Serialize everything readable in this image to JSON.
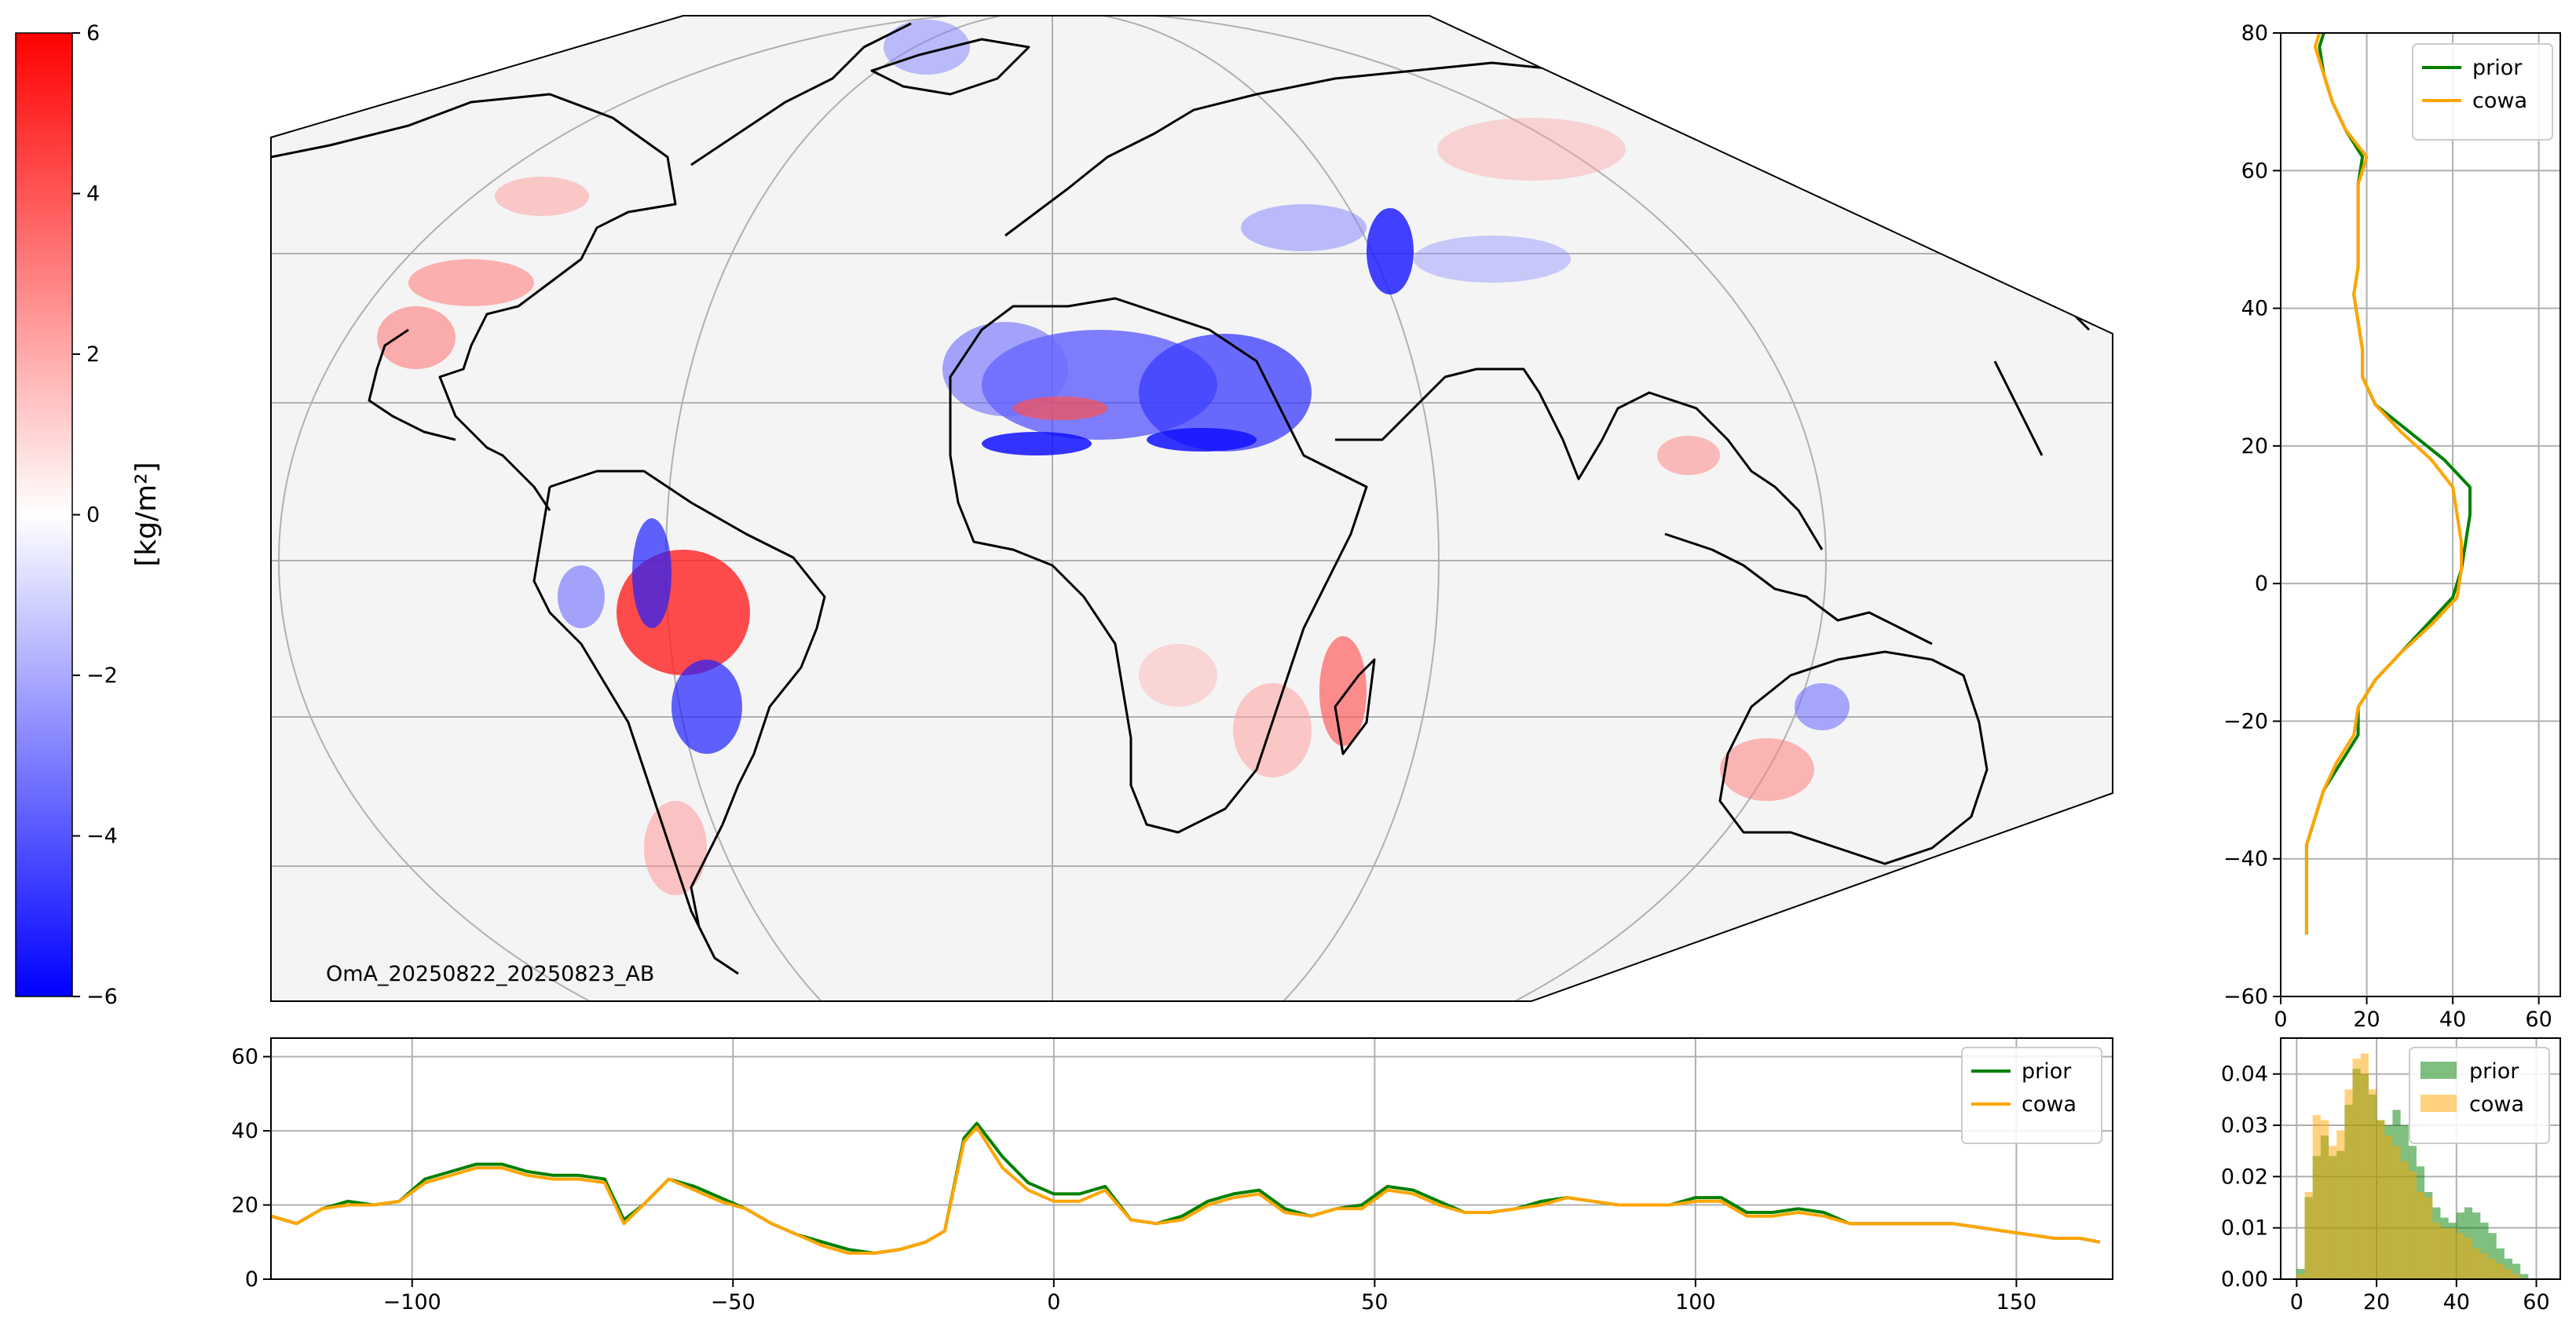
{
  "colorbar": {
    "label": "[kg/m²]",
    "range": [
      -6,
      6
    ],
    "ticks": [
      "6",
      "4",
      "2",
      "0",
      "−2",
      "−4",
      "−6"
    ],
    "colors": {
      "high": "#ff0000",
      "mid": "#ffffff",
      "low": "#0000ff"
    }
  },
  "map": {
    "caption": "OmA_20250822_20250823_AB",
    "projection": "Robinson",
    "background": "#f4f4f4",
    "coastline_color": "#000000",
    "gridline_color": "#b0b0b0"
  },
  "colors": {
    "prior": "#008000",
    "cowa": "#ffa500",
    "raw": "#8fc7e8"
  },
  "chart_data": [
    {
      "type": "line",
      "title": "",
      "xlabel": "",
      "ylabel": "",
      "orientation": "vertical",
      "xlim": [
        0,
        65
      ],
      "ylim": [
        -60,
        80
      ],
      "xticks": [
        "0",
        "20",
        "40",
        "60"
      ],
      "yticks": [
        "80",
        "60",
        "40",
        "20",
        "0",
        "−20",
        "−40",
        "−60"
      ],
      "legend": "top-right",
      "grid": true,
      "series": [
        {
          "name": "prior",
          "lat": [
            -51,
            -46,
            -42,
            -38,
            -34,
            -30,
            -26,
            -22,
            -18,
            -14,
            -10,
            -6,
            -2,
            2,
            6,
            10,
            14,
            18,
            22,
            26,
            30,
            34,
            38,
            42,
            46,
            50,
            54,
            58,
            62,
            66,
            70,
            74,
            78,
            80
          ],
          "value": [
            6,
            6,
            6,
            6,
            8,
            10,
            14,
            18,
            18,
            22,
            28,
            34,
            40,
            42,
            43,
            44,
            44,
            38,
            30,
            22,
            19,
            19,
            18,
            17,
            18,
            18,
            18,
            18,
            19,
            15,
            12,
            10,
            9,
            10
          ]
        },
        {
          "name": "cowa",
          "lat": [
            -51,
            -46,
            -42,
            -38,
            -34,
            -30,
            -26,
            -22,
            -18,
            -14,
            -10,
            -6,
            -2,
            2,
            6,
            10,
            14,
            18,
            22,
            26,
            30,
            34,
            38,
            42,
            46,
            50,
            54,
            58,
            62,
            66,
            70,
            74,
            78,
            80
          ],
          "value": [
            6,
            6,
            6,
            6,
            8,
            10,
            13,
            17,
            18,
            22,
            28,
            35,
            41,
            42,
            42,
            41,
            40,
            35,
            28,
            22,
            19,
            19,
            18,
            17,
            18,
            18,
            18,
            18,
            20,
            15,
            12,
            10,
            8,
            9
          ]
        }
      ]
    },
    {
      "type": "line",
      "title": "",
      "xlabel": "",
      "ylabel": "",
      "xlim": [
        -122,
        165
      ],
      "ylim": [
        0,
        65
      ],
      "xticks": [
        "−100",
        "−50",
        "0",
        "50",
        "100",
        "150"
      ],
      "yticks": [
        "0",
        "20",
        "40",
        "60"
      ],
      "legend": "top-right",
      "grid": true,
      "x": [
        -122,
        -118,
        -114,
        -110,
        -106,
        -102,
        -98,
        -94,
        -90,
        -86,
        -82,
        -78,
        -74,
        -70,
        -67,
        -64,
        -60,
        -56,
        -52,
        -48,
        -44,
        -40,
        -36,
        -32,
        -28,
        -24,
        -20,
        -17,
        -14,
        -12,
        -8,
        -4,
        0,
        4,
        8,
        12,
        16,
        20,
        24,
        28,
        32,
        36,
        40,
        44,
        48,
        52,
        56,
        60,
        64,
        68,
        72,
        76,
        80,
        84,
        88,
        92,
        96,
        100,
        104,
        108,
        112,
        116,
        120,
        124,
        128,
        132,
        136,
        140,
        144,
        148,
        152,
        156,
        160,
        163
      ],
      "series": [
        {
          "name": "prior",
          "values": [
            17,
            15,
            19,
            21,
            20,
            21,
            27,
            29,
            31,
            31,
            29,
            28,
            28,
            27,
            16,
            20,
            27,
            25,
            22,
            19,
            15,
            12,
            10,
            8,
            7,
            8,
            10,
            13,
            38,
            42,
            33,
            26,
            23,
            23,
            25,
            16,
            15,
            17,
            21,
            23,
            24,
            19,
            17,
            19,
            20,
            25,
            24,
            21,
            18,
            18,
            19,
            21,
            22,
            21,
            20,
            20,
            20,
            22,
            22,
            18,
            18,
            19,
            18,
            15,
            15,
            15,
            15,
            15,
            14,
            13,
            12,
            11,
            11,
            10
          ]
        },
        {
          "name": "cowa",
          "values": [
            17,
            15,
            19,
            20,
            20,
            21,
            26,
            28,
            30,
            30,
            28,
            27,
            27,
            26,
            15,
            20,
            27,
            24,
            21,
            19,
            15,
            12,
            9,
            7,
            7,
            8,
            10,
            13,
            37,
            41,
            30,
            24,
            21,
            21,
            24,
            16,
            15,
            16,
            20,
            22,
            23,
            18,
            17,
            19,
            19,
            24,
            23,
            20,
            18,
            18,
            19,
            20,
            22,
            21,
            20,
            20,
            20,
            21,
            21,
            17,
            17,
            18,
            17,
            15,
            15,
            15,
            15,
            15,
            14,
            13,
            12,
            11,
            11,
            10
          ]
        }
      ]
    },
    {
      "type": "bar",
      "title": "",
      "xlabel": "",
      "ylabel": "",
      "xlim": [
        -4,
        66
      ],
      "ylim": [
        0,
        0.047
      ],
      "xticks": [
        "0",
        "20",
        "40",
        "60"
      ],
      "yticks": [
        "0.00",
        "0.01",
        "0.02",
        "0.03",
        "0.04"
      ],
      "legend": "top-right",
      "grid": true,
      "bin_width": 2,
      "bin_start": [
        0,
        2,
        4,
        6,
        8,
        10,
        12,
        14,
        16,
        18,
        20,
        22,
        24,
        26,
        28,
        30,
        32,
        34,
        36,
        38,
        40,
        42,
        44,
        46,
        48,
        50,
        52,
        54,
        56,
        58
      ],
      "series": [
        {
          "name": "prior",
          "values": [
            0.002,
            0.016,
            0.024,
            0.028,
            0.024,
            0.025,
            0.034,
            0.041,
            0.04,
            0.036,
            0.031,
            0.03,
            0.033,
            0.03,
            0.026,
            0.022,
            0.017,
            0.014,
            0.012,
            0.011,
            0.013,
            0.014,
            0.013,
            0.011,
            0.009,
            0.006,
            0.004,
            0.003,
            0.001,
            0.0
          ]
        },
        {
          "name": "cowa",
          "values": [
            0.001,
            0.017,
            0.032,
            0.031,
            0.026,
            0.029,
            0.037,
            0.043,
            0.044,
            0.037,
            0.031,
            0.028,
            0.026,
            0.023,
            0.021,
            0.017,
            0.016,
            0.011,
            0.01,
            0.01,
            0.009,
            0.008,
            0.006,
            0.005,
            0.004,
            0.003,
            0.002,
            0.001,
            0.0,
            0.0
          ]
        }
      ]
    }
  ]
}
